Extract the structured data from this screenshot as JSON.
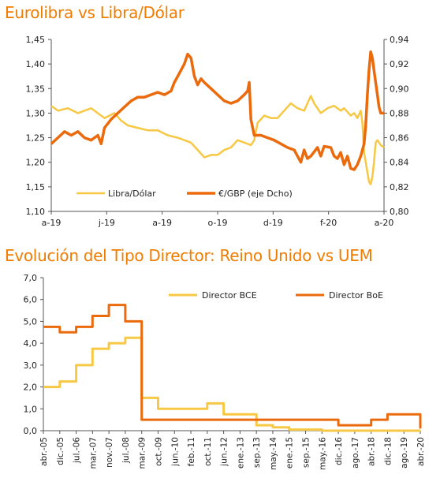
{
  "chart_data": [
    {
      "type": "line",
      "title": "Eurolibra vs Libra/Dólar",
      "x_ticks": [
        "a-19",
        "j-19",
        "a-19",
        "o-19",
        "d-19",
        "f-20",
        "a-20"
      ],
      "y_left_ticks": [
        "1,10",
        "1,15",
        "1,20",
        "1,25",
        "1,30",
        "1,35",
        "1,40",
        "1,45"
      ],
      "y_right_ticks": [
        "0,80",
        "0,82",
        "0,84",
        "0,86",
        "0,88",
        "0,90",
        "0,92",
        "0,94"
      ],
      "ylim_left": [
        1.1,
        1.45
      ],
      "ylim_right": [
        0.8,
        0.94
      ],
      "grid": false,
      "legend_position": "bottom",
      "series": [
        {
          "name": "Libra/Dólar",
          "axis": "left",
          "color": "#f7c843",
          "points": [
            [
              0,
              1.315
            ],
            [
              0.02,
              1.305
            ],
            [
              0.05,
              1.31
            ],
            [
              0.08,
              1.3
            ],
            [
              0.12,
              1.31
            ],
            [
              0.16,
              1.29
            ],
            [
              0.19,
              1.3
            ],
            [
              0.21,
              1.285
            ],
            [
              0.23,
              1.275
            ],
            [
              0.26,
              1.27
            ],
            [
              0.29,
              1.265
            ],
            [
              0.32,
              1.265
            ],
            [
              0.35,
              1.255
            ],
            [
              0.38,
              1.25
            ],
            [
              0.4,
              1.245
            ],
            [
              0.42,
              1.24
            ],
            [
              0.44,
              1.225
            ],
            [
              0.46,
              1.21
            ],
            [
              0.48,
              1.215
            ],
            [
              0.5,
              1.215
            ],
            [
              0.52,
              1.225
            ],
            [
              0.54,
              1.23
            ],
            [
              0.56,
              1.245
            ],
            [
              0.58,
              1.24
            ],
            [
              0.6,
              1.235
            ],
            [
              0.61,
              1.245
            ],
            [
              0.62,
              1.28
            ],
            [
              0.64,
              1.295
            ],
            [
              0.66,
              1.29
            ],
            [
              0.68,
              1.29
            ],
            [
              0.7,
              1.305
            ],
            [
              0.72,
              1.32
            ],
            [
              0.74,
              1.31
            ],
            [
              0.76,
              1.305
            ],
            [
              0.78,
              1.335
            ],
            [
              0.79,
              1.32
            ],
            [
              0.81,
              1.3
            ],
            [
              0.83,
              1.31
            ],
            [
              0.85,
              1.315
            ],
            [
              0.87,
              1.305
            ],
            [
              0.88,
              1.31
            ],
            [
              0.9,
              1.295
            ],
            [
              0.91,
              1.3
            ],
            [
              0.92,
              1.29
            ],
            [
              0.93,
              1.305
            ],
            [
              0.935,
              1.28
            ],
            [
              0.94,
              1.22
            ],
            [
              0.95,
              1.18
            ],
            [
              0.955,
              1.16
            ],
            [
              0.96,
              1.155
            ],
            [
              0.965,
              1.17
            ],
            [
              0.97,
              1.2
            ],
            [
              0.975,
              1.24
            ],
            [
              0.98,
              1.245
            ],
            [
              0.99,
              1.235
            ],
            [
              1.0,
              1.23
            ]
          ]
        },
        {
          "name": "€/GBP (eje Dcho)",
          "axis": "right",
          "color": "#eb6a0c",
          "points": [
            [
              0,
              0.855
            ],
            [
              0.02,
              0.86
            ],
            [
              0.04,
              0.865
            ],
            [
              0.06,
              0.862
            ],
            [
              0.08,
              0.865
            ],
            [
              0.1,
              0.86
            ],
            [
              0.12,
              0.858
            ],
            [
              0.14,
              0.862
            ],
            [
              0.15,
              0.855
            ],
            [
              0.16,
              0.868
            ],
            [
              0.18,
              0.875
            ],
            [
              0.2,
              0.88
            ],
            [
              0.22,
              0.885
            ],
            [
              0.24,
              0.89
            ],
            [
              0.26,
              0.893
            ],
            [
              0.28,
              0.893
            ],
            [
              0.3,
              0.895
            ],
            [
              0.32,
              0.897
            ],
            [
              0.34,
              0.895
            ],
            [
              0.36,
              0.898
            ],
            [
              0.37,
              0.905
            ],
            [
              0.38,
              0.91
            ],
            [
              0.39,
              0.915
            ],
            [
              0.4,
              0.92
            ],
            [
              0.41,
              0.928
            ],
            [
              0.42,
              0.925
            ],
            [
              0.43,
              0.91
            ],
            [
              0.44,
              0.903
            ],
            [
              0.45,
              0.908
            ],
            [
              0.46,
              0.905
            ],
            [
              0.48,
              0.9
            ],
            [
              0.5,
              0.895
            ],
            [
              0.52,
              0.89
            ],
            [
              0.54,
              0.888
            ],
            [
              0.56,
              0.89
            ],
            [
              0.58,
              0.895
            ],
            [
              0.59,
              0.898
            ],
            [
              0.595,
              0.905
            ],
            [
              0.6,
              0.875
            ],
            [
              0.61,
              0.862
            ],
            [
              0.63,
              0.862
            ],
            [
              0.65,
              0.86
            ],
            [
              0.67,
              0.858
            ],
            [
              0.69,
              0.855
            ],
            [
              0.71,
              0.852
            ],
            [
              0.73,
              0.85
            ],
            [
              0.74,
              0.845
            ],
            [
              0.75,
              0.84
            ],
            [
              0.76,
              0.85
            ],
            [
              0.77,
              0.843
            ],
            [
              0.78,
              0.845
            ],
            [
              0.8,
              0.852
            ],
            [
              0.81,
              0.845
            ],
            [
              0.82,
              0.853
            ],
            [
              0.84,
              0.852
            ],
            [
              0.85,
              0.845
            ],
            [
              0.86,
              0.843
            ],
            [
              0.87,
              0.848
            ],
            [
              0.88,
              0.838
            ],
            [
              0.89,
              0.845
            ],
            [
              0.9,
              0.835
            ],
            [
              0.91,
              0.834
            ],
            [
              0.92,
              0.838
            ],
            [
              0.93,
              0.845
            ],
            [
              0.94,
              0.855
            ],
            [
              0.945,
              0.87
            ],
            [
              0.95,
              0.895
            ],
            [
              0.955,
              0.915
            ],
            [
              0.96,
              0.93
            ],
            [
              0.965,
              0.925
            ],
            [
              0.97,
              0.915
            ],
            [
              0.975,
              0.905
            ],
            [
              0.98,
              0.895
            ],
            [
              0.985,
              0.885
            ],
            [
              0.99,
              0.88
            ],
            [
              1.0,
              0.88
            ]
          ]
        }
      ]
    },
    {
      "type": "line",
      "title": "Evolución del Tipo Director: Reino Unido vs UEM",
      "x_ticks": [
        "abr.-05",
        "dic.-05",
        "jul.-06",
        "mar.-07",
        "nov.-07",
        "jul.-08",
        "mar.-09",
        "oct.-09",
        "jun.-10",
        "feb.-11",
        "oct.-11",
        "jun.-12",
        "ene.-13",
        "sep.-13",
        "may.-14",
        "ene.-15",
        "sep.-15",
        "may.-16",
        "dic.-16",
        "ago.-17",
        "abr.-18",
        "dic.-18",
        "ago.-19",
        "abr.-20"
      ],
      "y_ticks": [
        "0,0",
        "1,0",
        "2,0",
        "3,0",
        "4,0",
        "5,0",
        "6,0",
        "7,0"
      ],
      "ylim": [
        0,
        7
      ],
      "grid": false,
      "legend_position": "top-right",
      "series": [
        {
          "name": "Director BCE",
          "color": "#f7c843",
          "values": [
            2.0,
            2.25,
            3.0,
            3.75,
            4.0,
            4.25,
            1.5,
            1.0,
            1.0,
            1.0,
            1.25,
            0.75,
            0.75,
            0.25,
            0.15,
            0.05,
            0.05,
            0.0,
            0.0,
            0.0,
            0.0,
            0.0,
            0.0,
            0.0
          ]
        },
        {
          "name": "Director BoE",
          "color": "#eb6a0c",
          "values": [
            4.75,
            4.5,
            4.75,
            5.25,
            5.75,
            5.0,
            0.5,
            0.5,
            0.5,
            0.5,
            0.5,
            0.5,
            0.5,
            0.5,
            0.5,
            0.5,
            0.5,
            0.5,
            0.25,
            0.25,
            0.5,
            0.75,
            0.75,
            0.1
          ]
        }
      ]
    }
  ]
}
